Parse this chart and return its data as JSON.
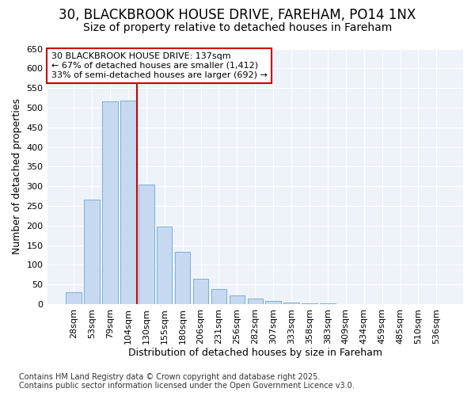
{
  "title1": "30, BLACKBROOK HOUSE DRIVE, FAREHAM, PO14 1NX",
  "title2": "Size of property relative to detached houses in Fareham",
  "xlabel": "Distribution of detached houses by size in Fareham",
  "ylabel": "Number of detached properties",
  "categories": [
    "28sqm",
    "53sqm",
    "79sqm",
    "104sqm",
    "130sqm",
    "155sqm",
    "180sqm",
    "206sqm",
    "231sqm",
    "256sqm",
    "282sqm",
    "307sqm",
    "333sqm",
    "358sqm",
    "383sqm",
    "409sqm",
    "434sqm",
    "459sqm",
    "485sqm",
    "510sqm",
    "536sqm"
  ],
  "values": [
    30,
    265,
    515,
    518,
    305,
    198,
    133,
    65,
    38,
    22,
    14,
    8,
    4,
    2,
    1,
    0,
    0,
    0,
    0,
    0,
    0
  ],
  "bar_color": "#c6d9f1",
  "bar_edge_color": "#7bafd4",
  "annotation_line0": "30 BLACKBROOK HOUSE DRIVE: 137sqm",
  "annotation_line1": "← 67% of detached houses are smaller (1,412)",
  "annotation_line2": "33% of semi-detached houses are larger (692) →",
  "ylim": [
    0,
    650
  ],
  "yticks": [
    0,
    50,
    100,
    150,
    200,
    250,
    300,
    350,
    400,
    450,
    500,
    550,
    600,
    650
  ],
  "footer1": "Contains HM Land Registry data © Crown copyright and database right 2025.",
  "footer2": "Contains public sector information licensed under the Open Government Licence v3.0.",
  "bg_color": "#ffffff",
  "plot_bg_color": "#eef2f9",
  "annotation_box_facecolor": "#ffffff",
  "annotation_box_edgecolor": "#cc0000",
  "red_line_color": "#cc0000",
  "grid_color": "#ffffff",
  "title1_fontsize": 12,
  "title2_fontsize": 10,
  "axis_label_fontsize": 9,
  "tick_fontsize": 8,
  "annotation_fontsize": 8,
  "footer_fontsize": 7
}
